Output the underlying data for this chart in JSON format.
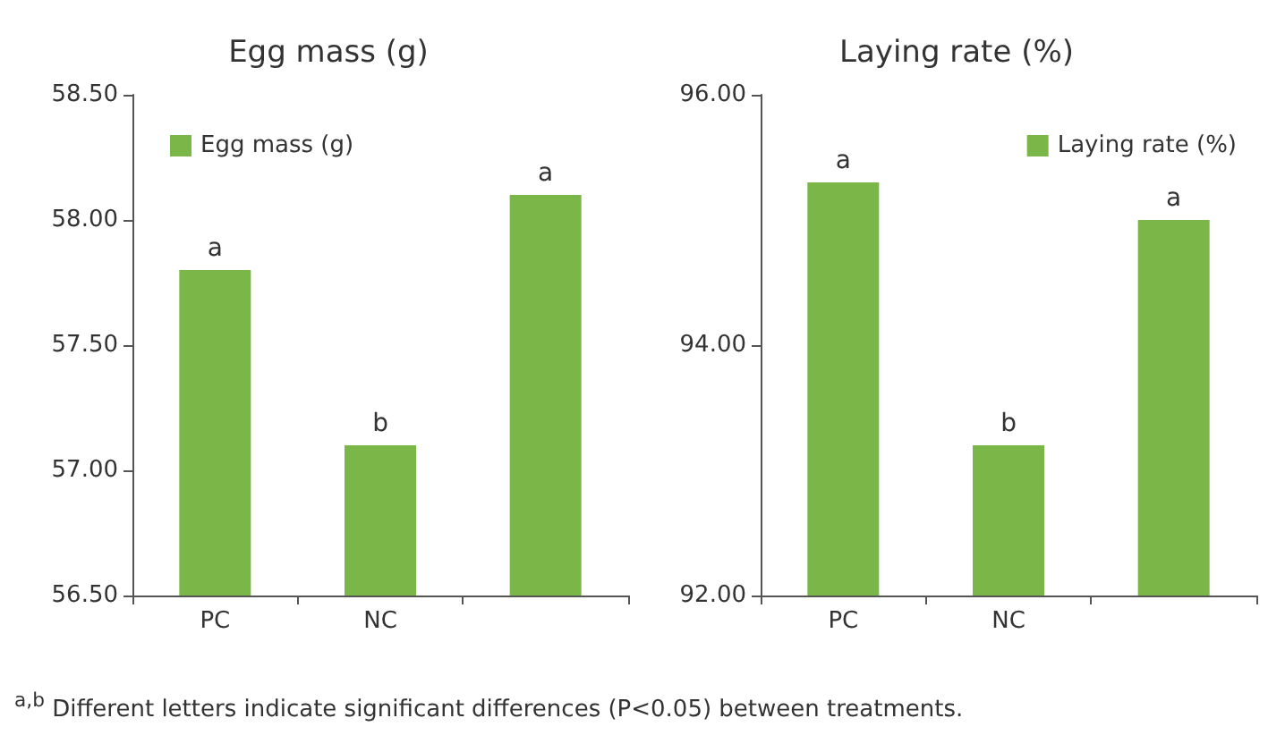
{
  "chart_data": [
    {
      "type": "bar",
      "title": "Egg mass (g)",
      "categories": [
        "PC",
        "NC",
        null
      ],
      "series": [
        {
          "name": "Egg mass (g)",
          "color": "#7ab648",
          "values": [
            57.8,
            57.1,
            58.1
          ],
          "value_labels": [
            "a",
            "b",
            "a"
          ]
        }
      ],
      "ylim": [
        56.5,
        58.5
      ],
      "yticks": [
        {
          "value": 56.5,
          "label": "56.50"
        },
        {
          "value": 57,
          "label": "57.00"
        },
        {
          "value": 57.5,
          "label": "57.50"
        },
        {
          "value": 58,
          "label": "58.00"
        },
        {
          "value": 58.5,
          "label": "58.50"
        }
      ],
      "grid": false,
      "legend": "top left",
      "annotations": [
        "$^{a,b}$ Different letters indicate significant differences (P<0.05) between treatments."
      ]
    },
    {
      "type": "bar",
      "title": "Laying rate (%)",
      "categories": [
        "PC",
        "NC",
        null
      ],
      "series": [
        {
          "name": "Laying rate (%)",
          "color": "#7ab648",
          "values": [
            95.3,
            93.2,
            95.0
          ],
          "value_labels": [
            "a",
            "b",
            "a"
          ]
        }
      ],
      "ylim": [
        92,
        96
      ],
      "yticks": [
        {
          "value": 92,
          "label": "92.00"
        },
        {
          "value": 94,
          "label": "94.00"
        },
        {
          "value": 96,
          "label": "96.00"
        }
      ],
      "grid": false,
      "legend": "top right"
    }
  ]
}
